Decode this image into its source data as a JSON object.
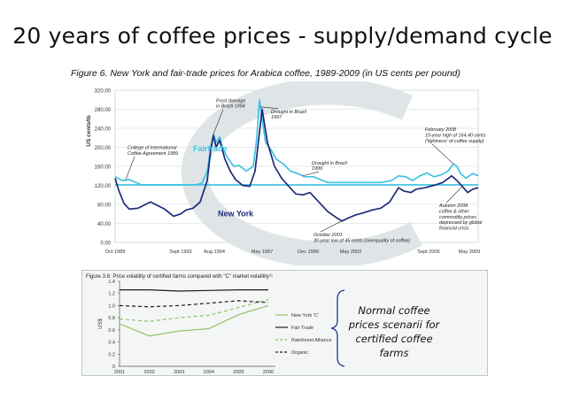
{
  "slide": {
    "title": "20 years of coffee prices - supply/demand cycle"
  },
  "chart_data": [
    {
      "type": "line",
      "title": "Figure 6. New York and fair-trade prices for Arabica coffee, 1989-2009 (in US cents per pound)",
      "ylabel": "US cents/lb",
      "ylim": [
        0,
        320
      ],
      "y_ticks": [
        "320.00",
        "280.00",
        "240.00",
        "200.00",
        "160.00",
        "120.00",
        "80.00",
        "40.00",
        "0.00"
      ],
      "x_range": [
        1989.0,
        2009.5
      ],
      "x_tick_labels": [
        {
          "x": 1989.0,
          "label": "Oct 1989"
        },
        {
          "x": 1992.7,
          "label": "Sept 1992"
        },
        {
          "x": 1994.6,
          "label": "Aug 1994"
        },
        {
          "x": 1997.3,
          "label": "May 1997"
        },
        {
          "x": 1999.9,
          "label": "Dec 1999"
        },
        {
          "x": 2002.3,
          "label": "May 2002"
        },
        {
          "x": 2006.7,
          "label": "Sept 2006"
        },
        {
          "x": 2009.0,
          "label": "May 2009"
        }
      ],
      "series": [
        {
          "name": "Fairtrade",
          "color": "#3fc3e3",
          "x": [
            1989.0,
            1989.4,
            1989.8,
            1990.5,
            1991.5,
            1992.5,
            1993.5,
            1993.9,
            1994.2,
            1994.4,
            1994.55,
            1994.7,
            1994.9,
            1995.1,
            1995.4,
            1995.7,
            1996.0,
            1996.4,
            1996.8,
            1997.0,
            1997.15,
            1997.3,
            1997.5,
            1997.8,
            1998.1,
            1998.5,
            1998.9,
            1999.3,
            1999.7,
            2000.2,
            2001.0,
            2002.0,
            2003.0,
            2004.0,
            2004.6,
            2005.0,
            2005.4,
            2005.8,
            2006.2,
            2006.6,
            2007.0,
            2007.4,
            2007.8,
            2008.1,
            2008.3,
            2008.5,
            2008.8,
            2009.0,
            2009.2,
            2009.5
          ],
          "values": [
            138,
            130,
            132,
            121,
            121,
            121,
            121,
            124,
            150,
            200,
            228,
            210,
            222,
            195,
            175,
            160,
            162,
            150,
            160,
            220,
            300,
            260,
            210,
            195,
            175,
            165,
            150,
            145,
            138,
            138,
            126,
            126,
            126,
            126,
            130,
            140,
            138,
            130,
            140,
            146,
            138,
            142,
            150,
            165,
            160,
            145,
            135,
            140,
            145,
            140
          ]
        },
        {
          "name": "New York",
          "color": "#1f2a78",
          "x": [
            1989.0,
            1989.2,
            1989.5,
            1989.8,
            1990.3,
            1991.0,
            1991.8,
            1992.3,
            1992.7,
            1993.0,
            1993.4,
            1993.8,
            1994.2,
            1994.4,
            1994.55,
            1994.7,
            1994.9,
            1995.2,
            1995.5,
            1995.8,
            1996.2,
            1996.6,
            1996.9,
            1997.1,
            1997.3,
            1997.6,
            1998.0,
            1998.4,
            1998.8,
            1999.2,
            1999.6,
            2000.0,
            2000.5,
            2001.0,
            2001.5,
            2001.8,
            2002.2,
            2002.6,
            2003.0,
            2003.5,
            2004.0,
            2004.5,
            2005.0,
            2005.3,
            2005.7,
            2006.0,
            2006.5,
            2007.0,
            2007.5,
            2008.0,
            2008.3,
            2008.6,
            2008.9,
            2009.2,
            2009.5
          ],
          "values": [
            135,
            110,
            82,
            70,
            72,
            85,
            70,
            55,
            60,
            68,
            72,
            85,
            130,
            195,
            225,
            200,
            215,
            175,
            150,
            132,
            120,
            118,
            150,
            215,
            280,
            210,
            160,
            135,
            118,
            102,
            100,
            105,
            85,
            65,
            52,
            45,
            52,
            58,
            62,
            68,
            72,
            85,
            115,
            108,
            105,
            112,
            115,
            120,
            126,
            140,
            130,
            118,
            105,
            112,
            115
          ]
        }
      ],
      "reference_line": {
        "value": 121,
        "color": "#3fc3e3"
      },
      "series_labels": [
        {
          "name": "Fairtrade",
          "x": 1993.4,
          "y": 192,
          "color": "#3fc3e3"
        },
        {
          "name": "New York",
          "x": 1994.8,
          "y": 55,
          "color": "#1f2a78"
        }
      ],
      "annotations": [
        {
          "lines": [
            "Frost damage",
            "in Brazil 1994"
          ],
          "text_x": 1994.7,
          "text_y": 295,
          "arrow_to": [
            1994.55,
            228
          ]
        },
        {
          "lines": [
            "Drought in Brazil",
            "1997"
          ],
          "text_x": 1997.8,
          "text_y": 272,
          "arrow_to": [
            1997.2,
            285
          ]
        },
        {
          "lines": [
            "College of International",
            "Coffee Agreement 1989"
          ],
          "text_x": 1989.7,
          "text_y": 196,
          "arrow_to": [
            1989.6,
            132
          ]
        },
        {
          "lines": [
            "Drought in Brazil",
            "1999"
          ],
          "text_x": 2000.1,
          "text_y": 164,
          "arrow_to": [
            1999.6,
            140
          ]
        },
        {
          "lines": [
            "February 2008",
            "10-year high of 164.40 cents",
            "('tightness' of coffee supply)"
          ],
          "text_x": 2006.5,
          "text_y": 234,
          "arrow_to": [
            2008.1,
            165
          ]
        },
        {
          "lines": [
            "Autumn 2008",
            "coffee & other",
            "commodity  prices",
            "depressed by global",
            "financial crisis"
          ],
          "text_x": 2007.3,
          "text_y": 74,
          "arrow_to": [
            2008.6,
            118
          ]
        },
        {
          "lines": [
            "October 2001",
            "30-year low of 45 cents (overquality of coffee)"
          ],
          "text_x": 2000.2,
          "text_y": 13,
          "arrow_to": [
            2001.8,
            45
          ]
        }
      ]
    },
    {
      "type": "line",
      "title": "Figure 3.6: Price volatility of certified farms compared with \"C\" market volatility¹¹",
      "ylabel": "US$",
      "ylim": [
        0,
        1.4
      ],
      "y_ticks": [
        "1.4",
        "1.2",
        "1.0",
        "0.8",
        "0.6",
        "0.4",
        "0.2",
        "0"
      ],
      "categories": [
        "2001",
        "2002",
        "2003",
        "2004",
        "2005",
        "2006"
      ],
      "series": [
        {
          "name": "New York 'C'",
          "color": "#8cc36b",
          "dash": "solid",
          "values": [
            0.7,
            0.5,
            0.58,
            0.62,
            0.85,
            1.0
          ]
        },
        {
          "name": "Fair Trade",
          "color": "#1a1a1a",
          "dash": "solid",
          "values": [
            1.26,
            1.26,
            1.24,
            1.25,
            1.26,
            1.26
          ]
        },
        {
          "name": "Rainforest Alliance",
          "color": "#8cc36b",
          "dash": "dashed",
          "values": [
            0.78,
            0.74,
            0.8,
            0.84,
            0.97,
            1.1
          ]
        },
        {
          "name": "Organic",
          "color": "#1a1a1a",
          "dash": "dashed",
          "values": [
            1.0,
            0.98,
            1.0,
            1.04,
            1.08,
            1.05
          ]
        }
      ]
    }
  ],
  "note": {
    "text": "Normal coffee prices scenarii for certified coffee farms"
  }
}
